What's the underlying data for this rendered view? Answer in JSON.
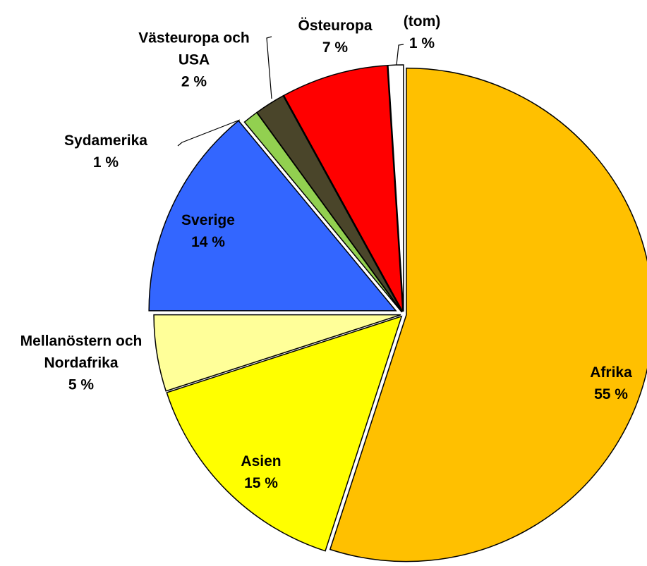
{
  "chart_data": {
    "type": "pie",
    "categories": [
      "Afrika",
      "Asien",
      "Mellanöstern och Nordafrika",
      "Sverige",
      "Sydamerika",
      "Västeuropa och USA",
      "Östeuropa",
      "(tom)"
    ],
    "values": [
      55,
      15,
      5,
      14,
      1,
      2,
      7,
      1
    ],
    "value_labels": [
      "55 %",
      "15 %",
      "5 %",
      "14 %",
      "1 %",
      "2 %",
      "7 %",
      "1 %"
    ],
    "colors": [
      "#FFC000",
      "#FFFF00",
      "#FFFF99",
      "#3366FF",
      "#92D050",
      "#4A452A",
      "#FF0000",
      "#FFFFFF"
    ]
  }
}
